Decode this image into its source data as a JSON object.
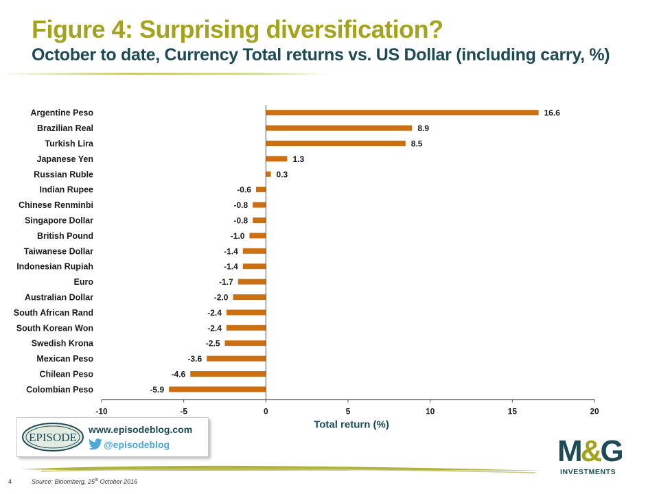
{
  "title": "Figure 4: Surprising diversification?",
  "subtitle": "October to date, Currency Total returns vs. US Dollar (including carry, %)",
  "chart_data": {
    "type": "bar",
    "orientation": "horizontal",
    "categories": [
      "Argentine Peso",
      "Brazilian Real",
      "Turkish Lira",
      "Japanese Yen",
      "Russian Ruble",
      "Indian Rupee",
      "Chinese Renminbi",
      "Singapore Dollar",
      "British Pound",
      "Taiwanese Dollar",
      "Indonesian Rupiah",
      "Euro",
      "Australian Dollar",
      "South African Rand",
      "South Korean Won",
      "Swedish Krona",
      "Mexican Peso",
      "Chilean Peso",
      "Colombian Peso"
    ],
    "values": [
      16.6,
      8.9,
      8.5,
      1.3,
      0.3,
      -0.6,
      -0.8,
      -0.8,
      -1.0,
      -1.4,
      -1.4,
      -1.7,
      -2.0,
      -2.4,
      -2.4,
      -2.5,
      -3.6,
      -4.6,
      -5.9
    ],
    "value_labels": [
      "16.6",
      "8.9",
      "8.5",
      "1.3",
      "0.3",
      "-0.6",
      "-0.8",
      "-0.8",
      "-1.0",
      "-1.4",
      "-1.4",
      "-1.7",
      "-2.0",
      "-2.4",
      "-2.4",
      "-2.5",
      "-3.6",
      "-4.6",
      "-5.9"
    ],
    "xlabel": "Total return (%)",
    "xlim": [
      -10,
      20
    ],
    "xticks": [
      -10,
      -5,
      0,
      5,
      10,
      15,
      20
    ],
    "grid": false,
    "bar_color": "#cc6f10"
  },
  "promo": {
    "logo_text": "EPISODE",
    "url": "www.episodeblog.com",
    "twitter_handle": "@episodeblog"
  },
  "footer": {
    "page_number": "4",
    "source_prefix": "Source: Bloomberg, 25",
    "source_sup": "th",
    "source_suffix": " October 2016"
  },
  "brand": {
    "logo_text_left": "M",
    "logo_text_amp": "&",
    "logo_text_right": "G",
    "logo_subtext": "INVESTMENTS"
  },
  "colors": {
    "title": "#a3a31c",
    "subtitle": "#1c4a55",
    "bar": "#cc6f10",
    "twitter": "#4ea7d8"
  }
}
